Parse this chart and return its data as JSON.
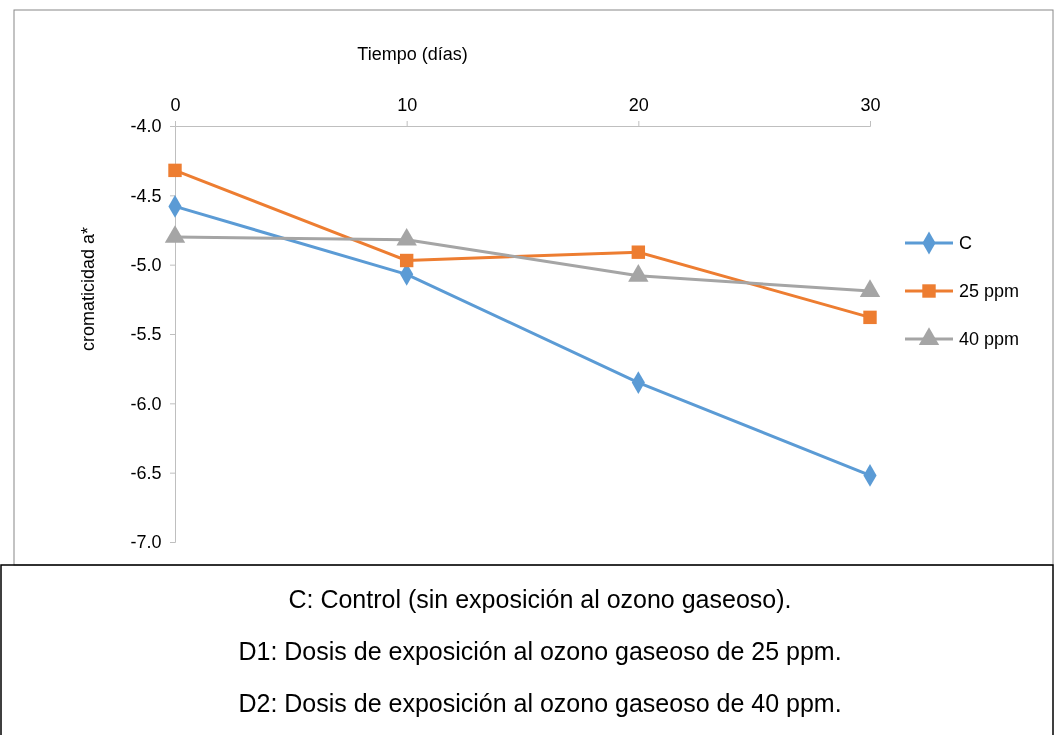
{
  "chart_data": {
    "type": "line",
    "xlabel": "Tiempo (días)",
    "ylabel": "cromaticidad a*",
    "x": [
      0,
      10,
      20,
      30
    ],
    "xlim": [
      0,
      30
    ],
    "xticks": [
      0,
      10,
      20,
      30
    ],
    "ylim": [
      -7,
      -4
    ],
    "yticks": [
      {
        "value": -4,
        "label": "-4.0"
      },
      {
        "value": -4.5,
        "label": "-4.5"
      },
      {
        "value": -5,
        "label": "-5.0"
      },
      {
        "value": -5.5,
        "label": "-5.5"
      },
      {
        "value": -6,
        "label": "-6.0"
      },
      {
        "value": -6.5,
        "label": "-6.5"
      },
      {
        "value": -7,
        "label": "-7.0"
      }
    ],
    "series": [
      {
        "name": "C",
        "color": "#5b9bd5",
        "marker": "diamond",
        "values": [
          -4.58,
          -5.07,
          -5.85,
          -6.52
        ]
      },
      {
        "name": "25 ppm",
        "color": "#ed7d31",
        "marker": "square",
        "values": [
          -4.32,
          -4.97,
          -4.91,
          -5.38
        ]
      },
      {
        "name": "40 ppm",
        "color": "#a5a5a5",
        "marker": "triangle",
        "values": [
          -4.8,
          -4.82,
          -5.08,
          -5.19
        ]
      }
    ],
    "grid": false,
    "legend": "right",
    "line_style": "solid",
    "annotations": [
      "C: Control (sin exposición al ozono gaseoso).",
      "D1: Dosis de exposición al ozono gaseoso de 25 ppm.",
      "D2: Dosis de exposición al ozono gaseoso de 40 ppm."
    ]
  }
}
